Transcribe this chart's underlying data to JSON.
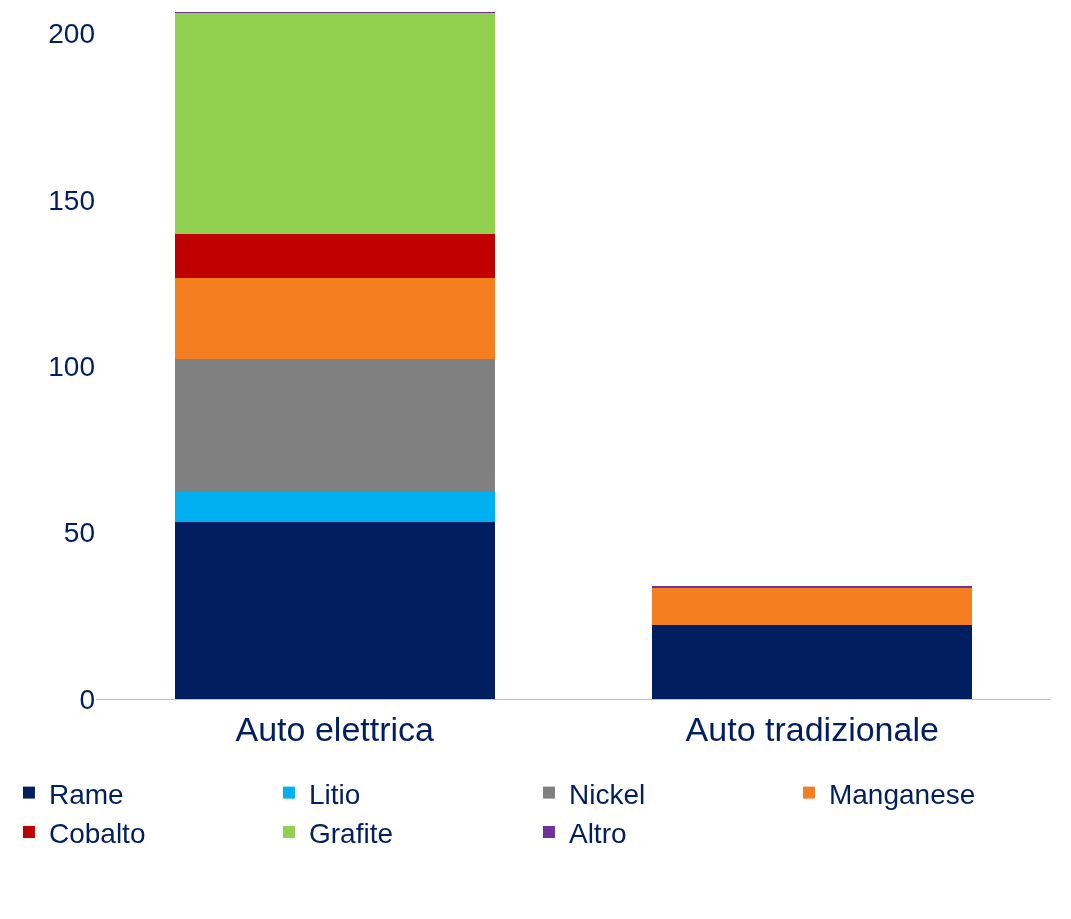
{
  "chart_data": {
    "type": "bar",
    "stacked": true,
    "categories": [
      "Auto elettrica",
      "Auto tradizionale"
    ],
    "series": [
      {
        "name": "Rame",
        "color": "#001e60",
        "values": [
          53.2,
          22.3
        ]
      },
      {
        "name": "Litio",
        "color": "#00b0f0",
        "values": [
          8.9,
          0
        ]
      },
      {
        "name": "Nickel",
        "color": "#808080",
        "values": [
          39.9,
          0
        ]
      },
      {
        "name": "Manganese",
        "color": "#f47e20",
        "values": [
          24.5,
          11.2
        ]
      },
      {
        "name": "Cobalto",
        "color": "#c00000",
        "values": [
          13.3,
          0
        ]
      },
      {
        "name": "Grafite",
        "color": "#92d050",
        "values": [
          66.3,
          0
        ]
      },
      {
        "name": "Altro",
        "color": "#7030a0",
        "values": [
          0.3,
          0.3
        ]
      }
    ],
    "ylim": [
      0,
      207
    ],
    "yticks": [
      0,
      50,
      100,
      150,
      200
    ],
    "legend": "bottom"
  }
}
